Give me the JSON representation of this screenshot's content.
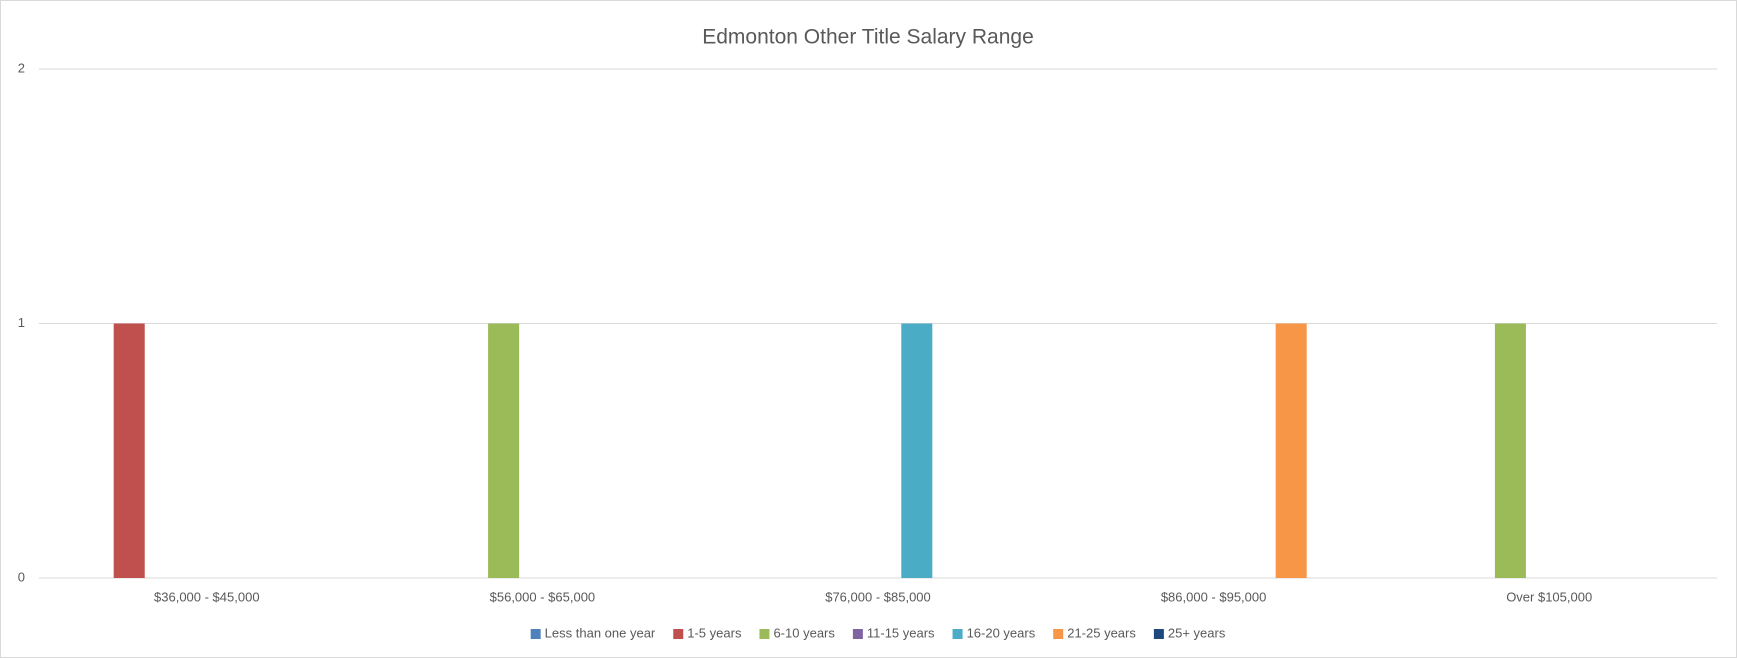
{
  "chart_data": {
    "type": "bar",
    "title": "Edmonton Other Title Salary Range",
    "categories": [
      "$36,000 - $45,000",
      "$56,000 - $65,000",
      "$76,000 - $85,000",
      "$86,000 - $95,000",
      "Over $105,000"
    ],
    "series": [
      {
        "name": "Less than one year",
        "color": "#4f81bd",
        "values": [
          0,
          0,
          0,
          0,
          0
        ]
      },
      {
        "name": "1-5 years",
        "color": "#c0504d",
        "values": [
          1,
          0,
          0,
          0,
          0
        ]
      },
      {
        "name": "6-10 years",
        "color": "#9bbb59",
        "values": [
          0,
          1,
          0,
          0,
          1
        ]
      },
      {
        "name": "11-15 years",
        "color": "#8064a2",
        "values": [
          0,
          0,
          0,
          0,
          0
        ]
      },
      {
        "name": "16-20 years",
        "color": "#4bacc6",
        "values": [
          0,
          0,
          1,
          0,
          0
        ]
      },
      {
        "name": "21-25 years",
        "color": "#f79646",
        "values": [
          0,
          0,
          0,
          1,
          0
        ]
      },
      {
        "name": "25+ years",
        "color": "#1f497d",
        "values": [
          0,
          0,
          0,
          0,
          0
        ]
      }
    ],
    "ylim": [
      0,
      2
    ],
    "yticks": [
      0,
      1,
      2
    ],
    "grid": true,
    "legend": "bottom"
  }
}
